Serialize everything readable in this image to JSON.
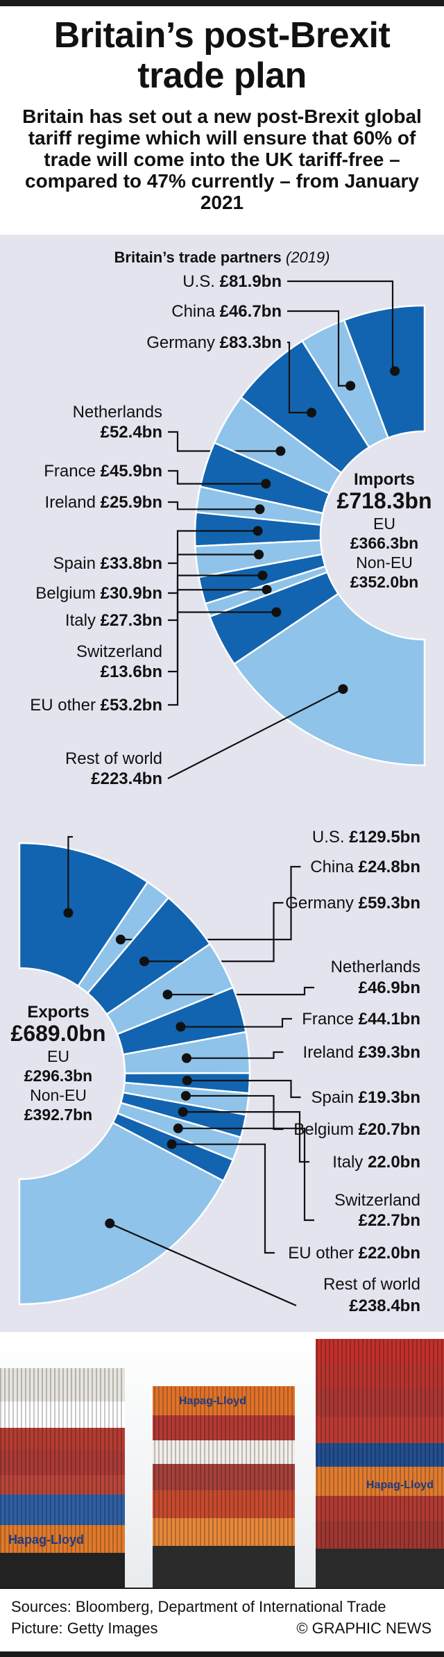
{
  "header": {
    "title_line1": "Britain’s post-Brexit",
    "title_line2": "trade plan",
    "subtitle": "Britain has set out a new post-Brexit global tariff regime which will ensure that 60% of trade will come into the UK tariff-free – compared to 47% currently – from January 2021"
  },
  "section": {
    "title": "Britain’s trade partners",
    "year": "(2019)"
  },
  "colors": {
    "dark": "#1264b0",
    "light": "#8fc3ea",
    "panel": "#e4e4ef"
  },
  "chart_data": [
    {
      "type": "pie",
      "variant": "half-donut",
      "name": "Imports",
      "total_label": "£718.3bn",
      "total": 718.3,
      "eu_label": "EU",
      "eu_value": "£366.3bn",
      "noneu_label": "Non-EU",
      "noneu_value": "£352.0bn",
      "segments": [
        {
          "name": "U.S.",
          "label": "£81.9bn",
          "value": 81.9
        },
        {
          "name": "China",
          "label": "£46.7bn",
          "value": 46.7
        },
        {
          "name": "Germany",
          "label": "£83.3bn",
          "value": 83.3
        },
        {
          "name": "Netherlands",
          "label": "£52.4bn",
          "value": 52.4
        },
        {
          "name": "France",
          "label": "£45.9bn",
          "value": 45.9
        },
        {
          "name": "Ireland",
          "label": "£25.9bn",
          "value": 25.9
        },
        {
          "name": "Spain",
          "label": "£33.8bn",
          "value": 33.8
        },
        {
          "name": "Belgium",
          "label": "£30.9bn",
          "value": 30.9
        },
        {
          "name": "Italy",
          "label": "£27.3bn",
          "value": 27.3
        },
        {
          "name": "Switzerland",
          "label": "£13.6bn",
          "value": 13.6
        },
        {
          "name": "EU other",
          "label": "£53.2bn",
          "value": 53.2
        },
        {
          "name": "Rest of world",
          "label": "£223.4bn",
          "value": 223.4
        }
      ]
    },
    {
      "type": "pie",
      "variant": "half-donut",
      "name": "Exports",
      "total_label": "£689.0bn",
      "total": 689.0,
      "eu_label": "EU",
      "eu_value": "£296.3bn",
      "noneu_label": "Non-EU",
      "noneu_value": "£392.7bn",
      "segments": [
        {
          "name": "U.S.",
          "label": "£129.5bn",
          "value": 129.5
        },
        {
          "name": "China",
          "label": "£24.8bn",
          "value": 24.8
        },
        {
          "name": "Germany",
          "label": "£59.3bn",
          "value": 59.3
        },
        {
          "name": "Netherlands",
          "label": "£46.9bn",
          "value": 46.9
        },
        {
          "name": "France",
          "label": "£44.1bn",
          "value": 44.1
        },
        {
          "name": "Ireland",
          "label": "£39.3bn",
          "value": 39.3
        },
        {
          "name": "Spain",
          "label": "£19.3bn",
          "value": 19.3
        },
        {
          "name": "Belgium",
          "label": "£20.7bn",
          "value": 20.7
        },
        {
          "name": "Italy",
          "label": "22.0bn",
          "value": 22.0
        },
        {
          "name": "Switzerland",
          "label": "£22.7bn",
          "value": 22.7
        },
        {
          "name": "EU other",
          "label": "£22.0bn",
          "value": 22.0
        },
        {
          "name": "Rest of world",
          "label": "£238.4bn",
          "value": 238.4
        }
      ]
    }
  ],
  "photo": {
    "container_logo": "Hapag-Lloyd"
  },
  "footer": {
    "sources": "Sources: Bloomberg, Department of International Trade",
    "picture": "Picture: Getty Images",
    "brand": "© GRAPHIC NEWS"
  }
}
